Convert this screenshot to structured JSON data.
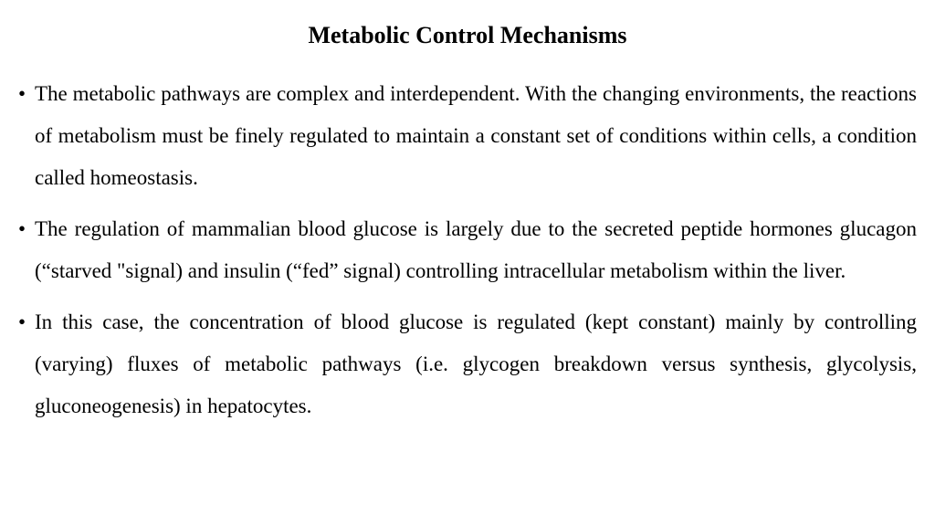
{
  "title": "Metabolic Control Mechanisms",
  "bullets": [
    "The metabolic pathways are complex and interdependent. With the changing environments, the reactions of metabolism must be finely regulated to maintain a constant set of conditions within cells, a condition called homeostasis.",
    "The regulation of mammalian blood glucose is largely due to the secreted peptide hormones glucagon (“starved \"signal) and insulin (“fed” signal) controlling intracellular metabolism within the liver.",
    "In this case, the concentration of blood glucose is regulated (kept constant) mainly by controlling (varying) fluxes of metabolic pathways (i.e. glycogen breakdown versus synthesis, glycolysis, gluconeogenesis) in hepatocytes."
  ],
  "styling": {
    "background_color": "#ffffff",
    "text_color": "#000000",
    "font_family": "Times New Roman",
    "title_fontsize": 26,
    "title_fontweight": "bold",
    "body_fontsize": 23,
    "line_height": 2.0,
    "text_align": "justify",
    "bullet_marker": "•"
  }
}
